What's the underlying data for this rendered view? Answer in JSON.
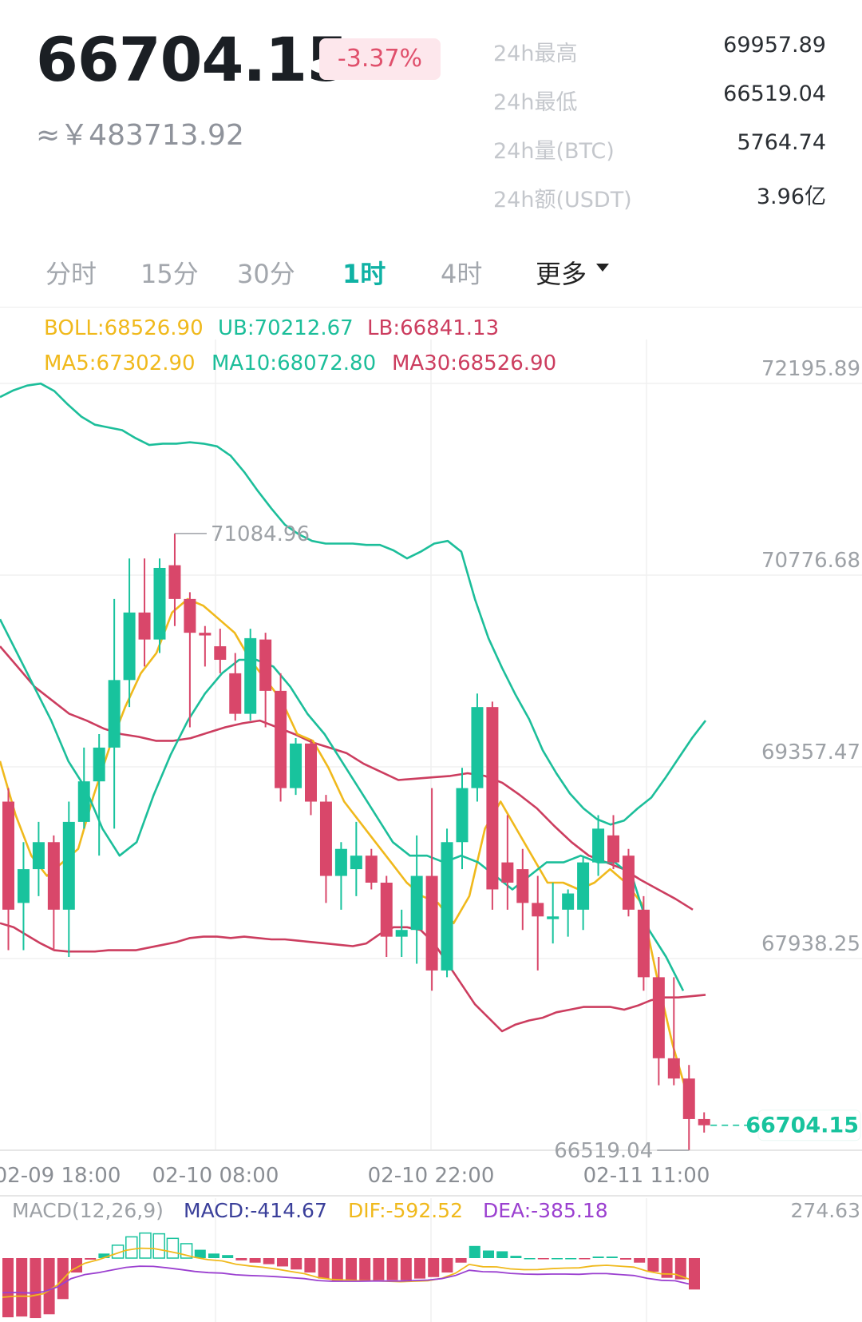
{
  "header": {
    "price": "66704.15",
    "change": "-3.37%",
    "cny": "≈￥483713.92",
    "stats": [
      {
        "label": "24h最高",
        "value": "69957.89"
      },
      {
        "label": "24h最低",
        "value": "66519.04"
      },
      {
        "label": "24h量(BTC)",
        "value": "5764.74"
      },
      {
        "label": "24h额(USDT)",
        "value": "3.96亿"
      }
    ]
  },
  "tabs": [
    {
      "label": "分时",
      "active": false
    },
    {
      "label": "15分",
      "active": false
    },
    {
      "label": "30分",
      "active": false
    },
    {
      "label": "1时",
      "active": true
    },
    {
      "label": "4时",
      "active": false
    },
    {
      "label": "更多",
      "active": false
    }
  ],
  "colors": {
    "up": "#18c39d",
    "down": "#d9476a",
    "boll_mid": "#f0b91c",
    "ub_line": "#1cbe9a",
    "lb_line": "#cc3d5f",
    "dea": "#9b40d0",
    "accent": "#0fb2a4"
  },
  "chart_data": {
    "type": "candlestick",
    "legend_boll": {
      "boll": "BOLL:68526.90",
      "ub": "UB:70212.67",
      "lb": "LB:66841.13"
    },
    "legend_ma": {
      "ma5": "MA5:67302.90",
      "ma10": "MA10:68072.80",
      "ma30": "MA30:68526.90"
    },
    "y_ticks": [
      "72195.89",
      "70776.68",
      "69357.47",
      "67938.25"
    ],
    "y_tick_values": [
      72195.89,
      70776.68,
      69357.47,
      67938.25
    ],
    "x_ticks": [
      "02-09 18:00",
      "02-10 08:00",
      "02-10 22:00",
      "02-11 11:00"
    ],
    "max_label": "71084.96",
    "max_value": 71084.96,
    "min_label": "66519.04",
    "min_value": 66519.04,
    "last_price_label": "66704.15",
    "last_price": 66704.15,
    "candles": [
      {
        "o": 69100,
        "h": 69200,
        "l": 68000,
        "c": 68300
      },
      {
        "o": 68350,
        "h": 68800,
        "l": 68000,
        "c": 68600
      },
      {
        "o": 68600,
        "h": 68950,
        "l": 68400,
        "c": 68800
      },
      {
        "o": 68800,
        "h": 68850,
        "l": 68000,
        "c": 68300
      },
      {
        "o": 68300,
        "h": 69100,
        "l": 67950,
        "c": 68950
      },
      {
        "o": 68950,
        "h": 69500,
        "l": 68900,
        "c": 69250
      },
      {
        "o": 69250,
        "h": 69600,
        "l": 68700,
        "c": 69500
      },
      {
        "o": 69500,
        "h": 70600,
        "l": 68900,
        "c": 70000
      },
      {
        "o": 70000,
        "h": 70900,
        "l": 69800,
        "c": 70500
      },
      {
        "o": 70500,
        "h": 70900,
        "l": 70100,
        "c": 70300
      },
      {
        "o": 70300,
        "h": 70900,
        "l": 70200,
        "c": 70830
      },
      {
        "o": 70850,
        "h": 71085,
        "l": 70400,
        "c": 70600
      },
      {
        "o": 70600,
        "h": 70650,
        "l": 69650,
        "c": 70350
      },
      {
        "o": 70350,
        "h": 70400,
        "l": 70100,
        "c": 70330
      },
      {
        "o": 70250,
        "h": 70380,
        "l": 70050,
        "c": 70150
      },
      {
        "o": 70050,
        "h": 70200,
        "l": 69700,
        "c": 69750
      },
      {
        "o": 69750,
        "h": 70380,
        "l": 69700,
        "c": 70310
      },
      {
        "o": 70300,
        "h": 70350,
        "l": 69650,
        "c": 69920
      },
      {
        "o": 69920,
        "h": 70050,
        "l": 69100,
        "c": 69200
      },
      {
        "o": 69200,
        "h": 69570,
        "l": 69150,
        "c": 69530
      },
      {
        "o": 69530,
        "h": 69560,
        "l": 69000,
        "c": 69100
      },
      {
        "o": 69100,
        "h": 69150,
        "l": 68350,
        "c": 68550
      },
      {
        "o": 68550,
        "h": 68800,
        "l": 68300,
        "c": 68750
      },
      {
        "o": 68600,
        "h": 68950,
        "l": 68400,
        "c": 68700
      },
      {
        "o": 68700,
        "h": 68750,
        "l": 68450,
        "c": 68500
      },
      {
        "o": 68500,
        "h": 68550,
        "l": 67950,
        "c": 68100
      },
      {
        "o": 68100,
        "h": 68300,
        "l": 67950,
        "c": 68150
      },
      {
        "o": 68150,
        "h": 68850,
        "l": 67900,
        "c": 68550
      },
      {
        "o": 68550,
        "h": 69200,
        "l": 67700,
        "c": 67850
      },
      {
        "o": 67850,
        "h": 68900,
        "l": 67800,
        "c": 68800
      },
      {
        "o": 68800,
        "h": 69350,
        "l": 68600,
        "c": 69200
      },
      {
        "o": 69200,
        "h": 69900,
        "l": 69100,
        "c": 69800
      },
      {
        "o": 69800,
        "h": 69840,
        "l": 68300,
        "c": 68450
      },
      {
        "o": 68650,
        "h": 69000,
        "l": 68300,
        "c": 68500
      },
      {
        "o": 68600,
        "h": 68750,
        "l": 68150,
        "c": 68350
      },
      {
        "o": 68350,
        "h": 68550,
        "l": 67850,
        "c": 68250
      },
      {
        "o": 68230,
        "h": 68500,
        "l": 68050,
        "c": 68250
      },
      {
        "o": 68300,
        "h": 68450,
        "l": 68100,
        "c": 68420
      },
      {
        "o": 68300,
        "h": 68700,
        "l": 68150,
        "c": 68650
      },
      {
        "o": 68650,
        "h": 69000,
        "l": 68550,
        "c": 68900
      },
      {
        "o": 68850,
        "h": 69000,
        "l": 68600,
        "c": 68650
      },
      {
        "o": 68700,
        "h": 68750,
        "l": 68250,
        "c": 68300
      },
      {
        "o": 68300,
        "h": 68400,
        "l": 67700,
        "c": 67800
      },
      {
        "o": 67800,
        "h": 67950,
        "l": 67000,
        "c": 67200
      },
      {
        "o": 67200,
        "h": 67800,
        "l": 67000,
        "c": 67050
      },
      {
        "o": 67050,
        "h": 67150,
        "l": 66520,
        "c": 66750
      },
      {
        "o": 66750,
        "h": 66800,
        "l": 66650,
        "c": 66704
      }
    ],
    "ub": [
      72095,
      72145,
      72180,
      72195,
      72140,
      72040,
      71950,
      71890,
      71870,
      71850,
      71790,
      71740,
      71750,
      71750,
      71760,
      71750,
      71730,
      71660,
      71540,
      71400,
      71270,
      71150,
      71080,
      71030,
      71010,
      71010,
      71010,
      71000,
      71000,
      70960,
      70900,
      70950,
      71010,
      71030,
      70950,
      70600,
      70310,
      70090,
      69890,
      69710,
      69480,
      69310,
      69160,
      69050,
      68970,
      68930,
      68960,
      69050,
      69130,
      69270,
      69420,
      69570,
      69700
    ],
    "lb": [
      68200,
      68170,
      68110,
      68050,
      68000,
      67990,
      67990,
      67990,
      68000,
      68000,
      68000,
      68020,
      68040,
      68060,
      68090,
      68100,
      68100,
      68090,
      68100,
      68090,
      68080,
      68080,
      68070,
      68060,
      68050,
      68040,
      68030,
      68050,
      68120,
      68170,
      68170,
      68150,
      68050,
      67900,
      67750,
      67600,
      67500,
      67400,
      67450,
      67480,
      67500,
      67540,
      67560,
      67580,
      67580,
      67580,
      67560,
      67590,
      67630,
      67650,
      67650,
      67660,
      67670
    ],
    "mid": [
      70250,
      70100,
      69950,
      69850,
      69750,
      69700,
      69640,
      69600,
      69580,
      69550,
      69550,
      69570,
      69610,
      69650,
      69680,
      69700,
      69650,
      69600,
      69540,
      69500,
      69460,
      69380,
      69320,
      69260,
      69270,
      69280,
      69290,
      69310,
      69290,
      69240,
      69150,
      69050,
      68920,
      68800,
      68700,
      68650,
      68600,
      68520,
      68450,
      68380,
      68300
    ],
    "ma5": [
      69400,
      69000,
      68700,
      68550,
      68650,
      68750,
      69150,
      69500,
      69800,
      70050,
      70200,
      70500,
      70600,
      70550,
      70450,
      70350,
      70150,
      70000,
      69850,
      69600,
      69550,
      69350,
      69100,
      68950,
      68800,
      68650,
      68500,
      68400,
      68350,
      68200,
      68400,
      68900,
      69100,
      68900,
      68700,
      68500,
      68500,
      68450,
      68500,
      68600,
      68500,
      68350,
      67800,
      67300,
      66900
    ],
    "ma10": [
      70450,
      70200,
      69950,
      69700,
      69400,
      69200,
      68900,
      68700,
      68800,
      69150,
      69450,
      69700,
      69900,
      70050,
      70150,
      70150,
      70100,
      69950,
      69750,
      69600,
      69400,
      69200,
      69000,
      68800,
      68700,
      68700,
      68650,
      68700,
      68650,
      68550,
      68450,
      68550,
      68650,
      68650,
      68700,
      68650,
      68650,
      68550,
      68150,
      67950,
      67700
    ],
    "macd_label": "MACD(12,26,9)",
    "macd_text": "MACD:-414.67",
    "dif_text": "DIF:-592.52",
    "dea_text": "DEA:-385.18",
    "macd_ytick": "274.63",
    "macd_hist": [
      -780,
      -770,
      -790,
      -740,
      -540,
      -190,
      -20,
      60,
      170,
      280,
      330,
      320,
      260,
      190,
      110,
      60,
      40,
      -30,
      -60,
      -80,
      -110,
      -150,
      -190,
      -270,
      -300,
      -300,
      -300,
      -290,
      -290,
      -290,
      -270,
      -250,
      -190,
      -60,
      160,
      100,
      90,
      30,
      0,
      -10,
      0,
      0,
      -10,
      20,
      20,
      -20,
      -60,
      -180,
      -260,
      -280,
      -414
    ]
  }
}
